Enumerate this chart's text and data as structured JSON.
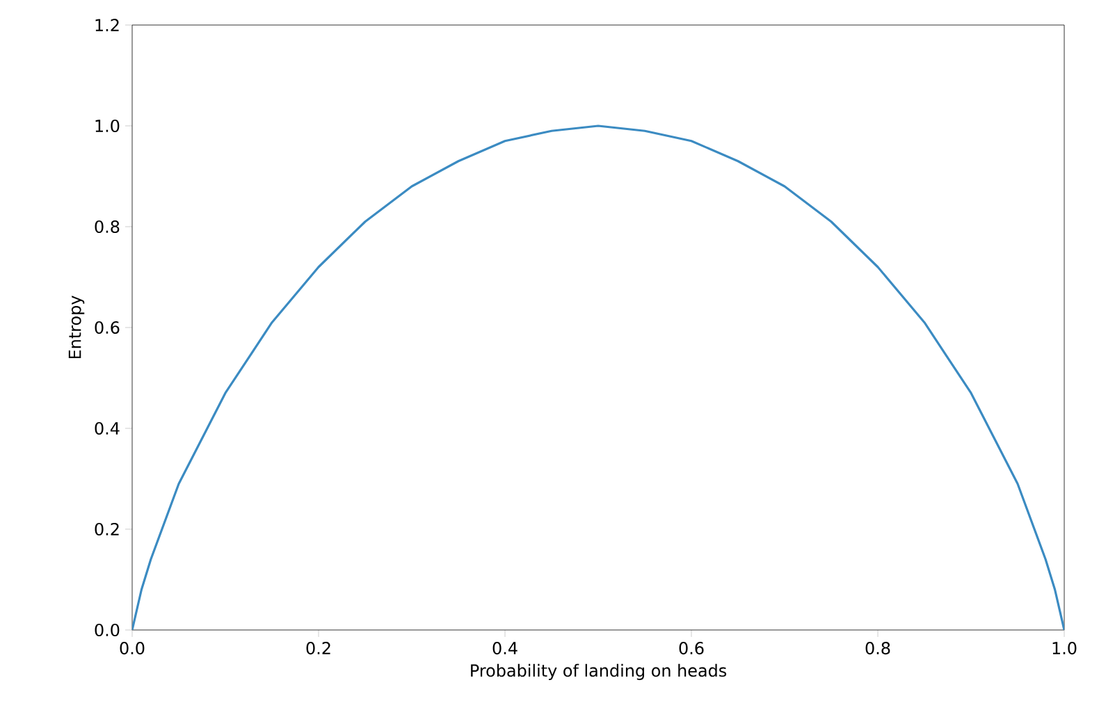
{
  "chart_data": {
    "type": "line",
    "xlabel": "Probability of landing on heads",
    "ylabel": "Entropy",
    "x": [
      0,
      0.01,
      0.02,
      0.05,
      0.1,
      0.15,
      0.2,
      0.25,
      0.3,
      0.35,
      0.4,
      0.45,
      0.5,
      0.55,
      0.6,
      0.65,
      0.7,
      0.75,
      0.8,
      0.85,
      0.9,
      0.95,
      0.98,
      0.99,
      1
    ],
    "series": [
      {
        "color": "#3b8bc2",
        "values": [
          0,
          0.08,
          0.14,
          0.29,
          0.47,
          0.61,
          0.72,
          0.81,
          0.88,
          0.93,
          0.97,
          0.99,
          1.0,
          0.99,
          0.97,
          0.93,
          0.88,
          0.81,
          0.72,
          0.61,
          0.47,
          0.29,
          0.14,
          0.08,
          0
        ]
      }
    ],
    "xlim": [
      0,
      1
    ],
    "ylim": [
      0,
      1.2
    ],
    "xticks": [
      {
        "value": 0,
        "label": "0.0"
      },
      {
        "value": 0.2,
        "label": "0.2"
      },
      {
        "value": 0.4,
        "label": "0.4"
      },
      {
        "value": 0.6,
        "label": "0.6"
      },
      {
        "value": 0.8,
        "label": "0.8"
      },
      {
        "value": 1,
        "label": "1.0"
      }
    ],
    "yticks": [
      {
        "value": 0,
        "label": "0.0"
      },
      {
        "value": 0.2,
        "label": "0.2"
      },
      {
        "value": 0.4,
        "label": "0.4"
      },
      {
        "value": 0.6,
        "label": "0.6"
      },
      {
        "value": 0.8,
        "label": "0.8"
      },
      {
        "value": 1,
        "label": "1.0"
      },
      {
        "value": 1.2,
        "label": "1.2"
      }
    ]
  }
}
